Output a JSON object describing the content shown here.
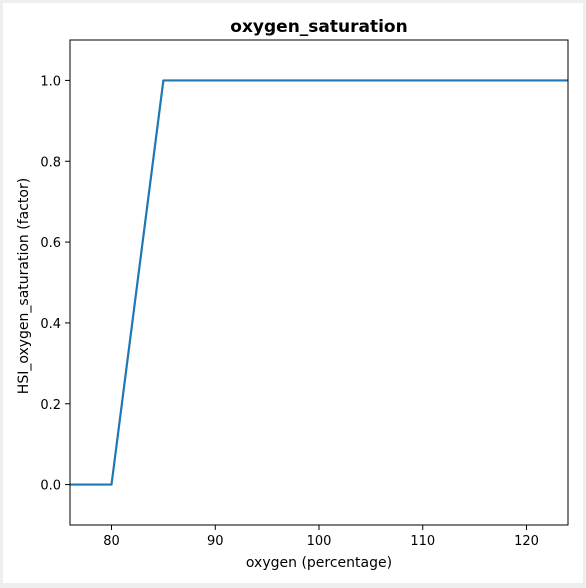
{
  "chart_data": {
    "type": "line",
    "title": "oxygen_saturation",
    "xlabel": "oxygen (percentage)",
    "ylabel": "HSI_oxygen_saturation (factor)",
    "xlim": [
      76,
      124
    ],
    "ylim": [
      -0.1,
      1.1
    ],
    "xticks": [
      80,
      90,
      100,
      110,
      120
    ],
    "yticks": [
      0.0,
      0.2,
      0.4,
      0.6,
      0.8,
      1.0
    ],
    "ytick_labels": [
      "0.0",
      "0.2",
      "0.4",
      "0.6",
      "0.8",
      "1.0"
    ],
    "grid": false,
    "series": [
      {
        "color": "#1f77b4",
        "x": [
          76,
          80,
          85,
          124
        ],
        "y": [
          0.0,
          0.0,
          1.0,
          1.0
        ]
      }
    ]
  }
}
